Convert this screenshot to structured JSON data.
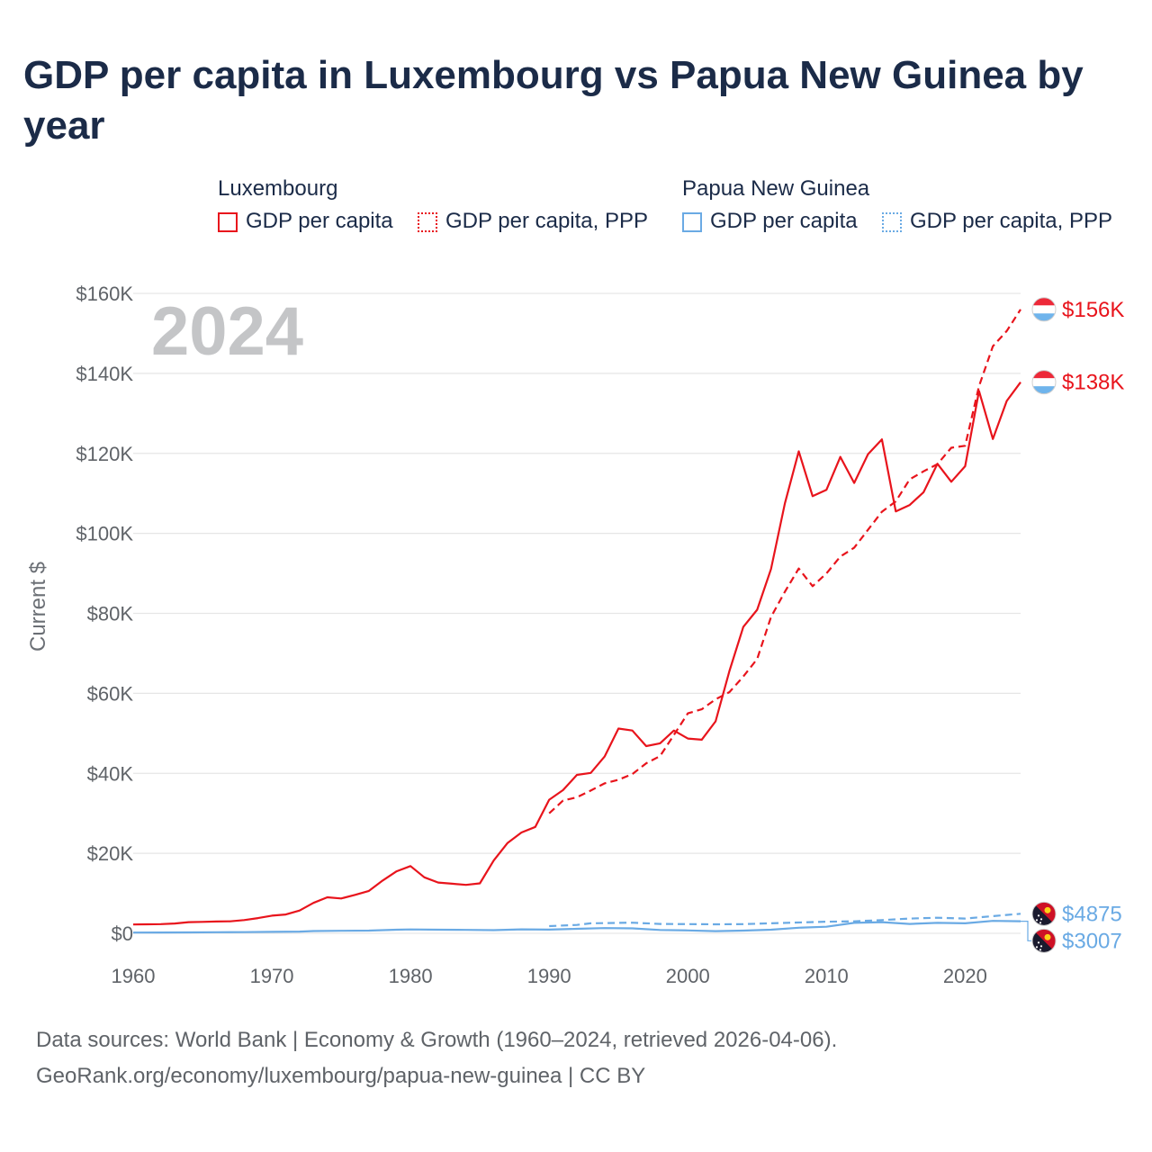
{
  "title": "GDP per capita in Luxembourg vs Papua New Guinea by year",
  "legend": {
    "groups": [
      {
        "name": "Luxembourg",
        "items": [
          {
            "label": "GDP per capita",
            "style": "solid"
          },
          {
            "label": "GDP per capita, PPP",
            "style": "dotted"
          }
        ]
      },
      {
        "name": "Papua New Guinea",
        "items": [
          {
            "label": "GDP per capita",
            "style": "solid"
          },
          {
            "label": "GDP per capita, PPP",
            "style": "dotted"
          }
        ]
      }
    ]
  },
  "footer": {
    "line1": "Data sources: World Bank | Economy & Growth (1960–2024, retrieved 2026-04-06).",
    "line2": "GeoRank.org/economy/luxembourg/papua-new-guinea | CC BY"
  },
  "chart_data": {
    "type": "line",
    "title": "GDP per capita in Luxembourg vs Papua New Guinea by year",
    "year_watermark": "2024",
    "xlabel": "",
    "ylabel": "Current $",
    "xlim": [
      1960,
      2024
    ],
    "ylim": [
      0,
      160000
    ],
    "x_ticks": [
      1960,
      1970,
      1980,
      1990,
      2000,
      2010,
      2020
    ],
    "y_ticks": [
      0,
      20000,
      40000,
      60000,
      80000,
      100000,
      120000,
      140000,
      160000
    ],
    "y_tick_labels": [
      "$0",
      "$20K",
      "$40K",
      "$60K",
      "$80K",
      "$100K",
      "$120K",
      "$140K",
      "$160K"
    ],
    "colors": {
      "luxembourg": "#e8141c",
      "papua_new_guinea": "#6aaae4",
      "grid": "#e6e6e6"
    },
    "series": [
      {
        "name": "Luxembourg GDP per capita",
        "country": "luxembourg",
        "dash": "solid",
        "end_label": "$138K",
        "points": [
          [
            1960,
            2200
          ],
          [
            1961,
            2250
          ],
          [
            1962,
            2300
          ],
          [
            1963,
            2450
          ],
          [
            1964,
            2800
          ],
          [
            1965,
            2850
          ],
          [
            1966,
            2950
          ],
          [
            1967,
            3000
          ],
          [
            1968,
            3300
          ],
          [
            1969,
            3800
          ],
          [
            1970,
            4400
          ],
          [
            1971,
            4700
          ],
          [
            1972,
            5700
          ],
          [
            1973,
            7600
          ],
          [
            1974,
            9000
          ],
          [
            1975,
            8700
          ],
          [
            1976,
            9600
          ],
          [
            1977,
            10600
          ],
          [
            1978,
            13200
          ],
          [
            1979,
            15500
          ],
          [
            1980,
            16800
          ],
          [
            1981,
            14000
          ],
          [
            1982,
            12700
          ],
          [
            1983,
            12400
          ],
          [
            1984,
            12100
          ],
          [
            1985,
            12500
          ],
          [
            1986,
            18200
          ],
          [
            1987,
            22600
          ],
          [
            1988,
            25200
          ],
          [
            1989,
            26600
          ],
          [
            1990,
            33400
          ],
          [
            1991,
            35800
          ],
          [
            1992,
            39600
          ],
          [
            1993,
            40100
          ],
          [
            1994,
            44200
          ],
          [
            1995,
            51200
          ],
          [
            1996,
            50700
          ],
          [
            1997,
            46800
          ],
          [
            1998,
            47500
          ],
          [
            1999,
            50700
          ],
          [
            2000,
            48700
          ],
          [
            2001,
            48400
          ],
          [
            2002,
            53000
          ],
          [
            2003,
            65600
          ],
          [
            2004,
            76600
          ],
          [
            2005,
            80900
          ],
          [
            2006,
            91100
          ],
          [
            2007,
            107500
          ],
          [
            2008,
            120500
          ],
          [
            2009,
            109300
          ],
          [
            2010,
            110900
          ],
          [
            2011,
            119100
          ],
          [
            2012,
            112600
          ],
          [
            2013,
            119800
          ],
          [
            2014,
            123500
          ],
          [
            2015,
            105500
          ],
          [
            2016,
            107100
          ],
          [
            2017,
            110300
          ],
          [
            2018,
            117400
          ],
          [
            2019,
            112900
          ],
          [
            2020,
            116800
          ],
          [
            2021,
            135600
          ],
          [
            2022,
            123600
          ],
          [
            2023,
            133100
          ],
          [
            2024,
            137800
          ]
        ]
      },
      {
        "name": "Luxembourg GDP per capita, PPP",
        "country": "luxembourg",
        "dash": "dashed",
        "end_label": "$156K",
        "points": [
          [
            1990,
            30000
          ],
          [
            1991,
            33200
          ],
          [
            1992,
            34000
          ],
          [
            1993,
            35700
          ],
          [
            1994,
            37500
          ],
          [
            1995,
            38400
          ],
          [
            1996,
            39800
          ],
          [
            1997,
            42500
          ],
          [
            1998,
            44300
          ],
          [
            1999,
            49600
          ],
          [
            2000,
            55000
          ],
          [
            2001,
            56000
          ],
          [
            2002,
            58500
          ],
          [
            2003,
            60300
          ],
          [
            2004,
            64200
          ],
          [
            2005,
            68600
          ],
          [
            2006,
            79100
          ],
          [
            2007,
            85400
          ],
          [
            2008,
            91200
          ],
          [
            2009,
            86800
          ],
          [
            2010,
            90000
          ],
          [
            2011,
            94200
          ],
          [
            2012,
            96400
          ],
          [
            2013,
            100900
          ],
          [
            2014,
            105400
          ],
          [
            2015,
            108000
          ],
          [
            2016,
            113500
          ],
          [
            2017,
            115500
          ],
          [
            2018,
            117300
          ],
          [
            2019,
            121400
          ],
          [
            2020,
            121900
          ],
          [
            2021,
            136800
          ],
          [
            2022,
            146800
          ],
          [
            2023,
            150600
          ],
          [
            2024,
            156000
          ]
        ]
      },
      {
        "name": "Papua New Guinea GDP per capita",
        "country": "papua_new_guinea",
        "dash": "solid",
        "end_label": "$3007",
        "points": [
          [
            1960,
            180
          ],
          [
            1962,
            200
          ],
          [
            1964,
            220
          ],
          [
            1966,
            260
          ],
          [
            1968,
            300
          ],
          [
            1970,
            350
          ],
          [
            1972,
            430
          ],
          [
            1973,
            560
          ],
          [
            1975,
            620
          ],
          [
            1977,
            680
          ],
          [
            1979,
            900
          ],
          [
            1980,
            960
          ],
          [
            1982,
            900
          ],
          [
            1984,
            850
          ],
          [
            1986,
            780
          ],
          [
            1988,
            1000
          ],
          [
            1990,
            920
          ],
          [
            1992,
            1120
          ],
          [
            1994,
            1300
          ],
          [
            1996,
            1240
          ],
          [
            1998,
            830
          ],
          [
            2000,
            720
          ],
          [
            2002,
            550
          ],
          [
            2004,
            680
          ],
          [
            2006,
            900
          ],
          [
            2008,
            1400
          ],
          [
            2010,
            1650
          ],
          [
            2012,
            2600
          ],
          [
            2014,
            2800
          ],
          [
            2016,
            2350
          ],
          [
            2018,
            2600
          ],
          [
            2020,
            2500
          ],
          [
            2022,
            3100
          ],
          [
            2024,
            3007
          ]
        ]
      },
      {
        "name": "Papua New Guinea GDP per capita, PPP",
        "country": "papua_new_guinea",
        "dash": "dashed",
        "end_label": "$4875",
        "points": [
          [
            1990,
            1800
          ],
          [
            1992,
            2100
          ],
          [
            1993,
            2500
          ],
          [
            1995,
            2600
          ],
          [
            1996,
            2650
          ],
          [
            1998,
            2350
          ],
          [
            2000,
            2300
          ],
          [
            2002,
            2250
          ],
          [
            2004,
            2300
          ],
          [
            2006,
            2500
          ],
          [
            2008,
            2700
          ],
          [
            2010,
            2900
          ],
          [
            2012,
            3000
          ],
          [
            2014,
            3300
          ],
          [
            2016,
            3700
          ],
          [
            2018,
            3900
          ],
          [
            2020,
            3700
          ],
          [
            2022,
            4300
          ],
          [
            2024,
            4875
          ]
        ]
      }
    ]
  }
}
